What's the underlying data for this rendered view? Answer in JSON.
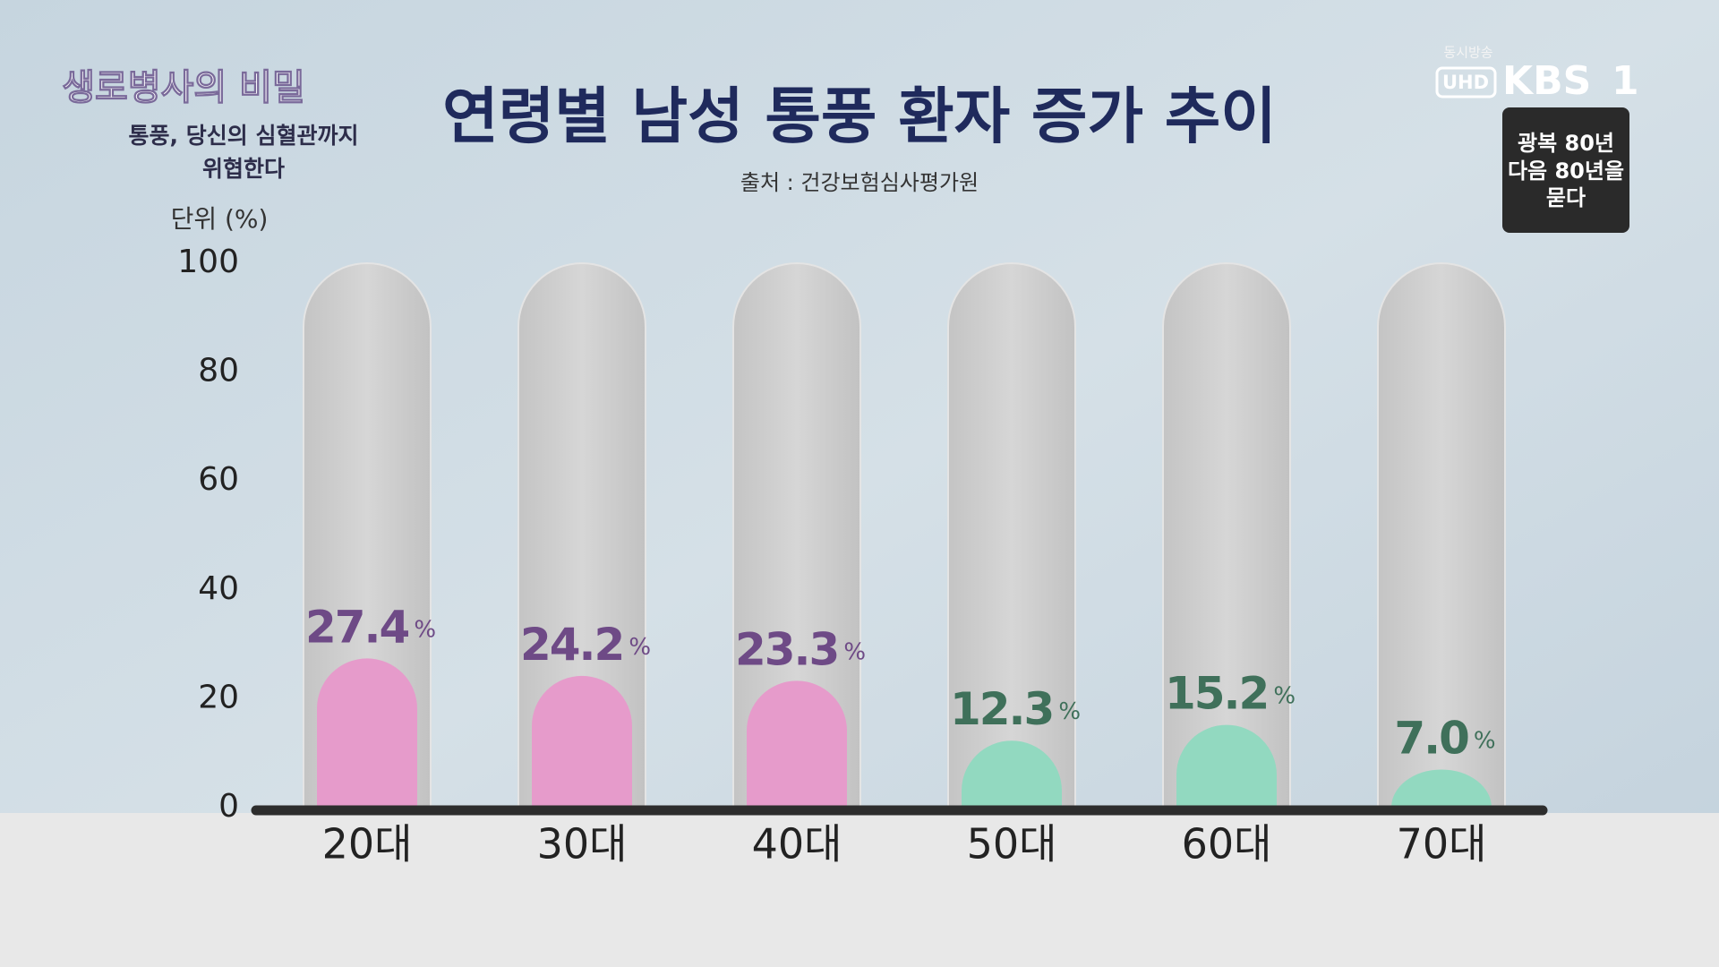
{
  "overlay": {
    "program_title": "생로병사의 비밀",
    "episode_line1": "통풍, 당신의 심혈관까지",
    "episode_line2": "위협한다",
    "simulcast": "동시방송",
    "uhd": "UHD",
    "channel": "KBS",
    "channel_number": "1",
    "badge_line1": "광복 80년",
    "badge_line2": "다음 80년을",
    "badge_line3": "묻다"
  },
  "chart_data": {
    "type": "bar",
    "title": "연령별 남성 통풍 환자 증가 추이",
    "subtitle": "출처 : 건강보험심사평가원",
    "y_label": "단위 (%)",
    "categories": [
      "20대",
      "30대",
      "40대",
      "50대",
      "60대",
      "70대"
    ],
    "values": [
      27.4,
      24.2,
      23.3,
      12.3,
      15.2,
      7.0
    ],
    "value_labels": [
      "27.4",
      "24.2",
      "23.3",
      "12.3",
      "15.2",
      "7.0"
    ],
    "value_unit": "%",
    "colors": [
      "#e69bcb",
      "#e69bcb",
      "#e69bcb",
      "#92d9c0",
      "#92d9c0",
      "#92d9c0"
    ],
    "label_colors": [
      "#6e4a86",
      "#6e4a86",
      "#6e4a86",
      "#3f705a",
      "#3f705a",
      "#3f705a"
    ],
    "ylim": [
      0,
      100
    ],
    "yticks": [
      0,
      20,
      40,
      60,
      80,
      100
    ],
    "grid": false
  }
}
